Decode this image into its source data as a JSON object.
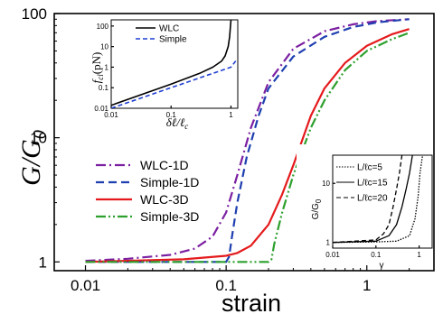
{
  "chart_data": [
    {
      "type": "line",
      "xlabel": "strain",
      "ylabel": "G/G0",
      "xscale": "log",
      "yscale": "log",
      "xlim": [
        0.006,
        3
      ],
      "ylim": [
        0.85,
        100
      ],
      "xticks": [
        0.01,
        0.1,
        1
      ],
      "xtick_labels": [
        "0.01",
        "0.1",
        "1"
      ],
      "yticks": [
        1,
        10,
        100
      ],
      "ytick_labels": [
        "1",
        "10",
        "100"
      ],
      "legend_position": "lower-left",
      "series": [
        {
          "name": "WLC-1D",
          "color": "#7b1fa2",
          "dash": "dashdot",
          "x": [
            0.01,
            0.02,
            0.04,
            0.06,
            0.08,
            0.1,
            0.12,
            0.15,
            0.2,
            0.3,
            0.5,
            0.8,
            1.2,
            2.0
          ],
          "y": [
            1.02,
            1.06,
            1.14,
            1.28,
            1.6,
            2.5,
            5,
            12,
            28,
            52,
            72,
            82,
            87,
            90
          ]
        },
        {
          "name": "Simple-1D",
          "color": "#1f3fb0",
          "dash": "dashed",
          "x": [
            0.01,
            0.05,
            0.1,
            0.105,
            0.11,
            0.12,
            0.14,
            0.17,
            0.2,
            0.3,
            0.5,
            0.8,
            1.2,
            2.0
          ],
          "y": [
            1.0,
            1.0,
            1.0,
            1.1,
            1.6,
            3.0,
            7,
            15,
            25,
            45,
            65,
            78,
            85,
            90
          ]
        },
        {
          "name": "WLC-3D",
          "color": "#e41a1c",
          "dash": "solid",
          "x": [
            0.01,
            0.05,
            0.1,
            0.12,
            0.15,
            0.2,
            0.25,
            0.3,
            0.4,
            0.5,
            0.7,
            1.0,
            1.5,
            2.0
          ],
          "y": [
            1.0,
            1.05,
            1.12,
            1.18,
            1.35,
            2.0,
            3.5,
            6,
            15,
            25,
            40,
            55,
            68,
            75
          ]
        },
        {
          "name": "Simple-3D",
          "color": "#2ca02c",
          "dash": "dashdotdot",
          "x": [
            0.01,
            0.1,
            0.2,
            0.21,
            0.22,
            0.25,
            0.3,
            0.35,
            0.4,
            0.5,
            0.7,
            1.0,
            1.5,
            2.0
          ],
          "y": [
            1.0,
            1.0,
            1.0,
            1.05,
            1.4,
            2.5,
            5,
            8,
            12,
            20,
            35,
            50,
            62,
            70
          ]
        }
      ]
    },
    {
      "type": "line",
      "title": "inset-top-left",
      "xlabel": "δℓ/ℓc",
      "ylabel": "fcl(pN)",
      "xscale": "log",
      "yscale": "log",
      "xlim": [
        0.01,
        1.3
      ],
      "ylim": [
        0.01,
        200
      ],
      "xtick_labels": [
        "0.01",
        "0.1",
        "1"
      ],
      "ytick_labels": [
        "0.01",
        "0.1",
        "1",
        "10",
        "100"
      ],
      "series": [
        {
          "name": "WLC",
          "color": "#000000",
          "dash": "solid",
          "x": [
            0.01,
            0.1,
            0.3,
            0.5,
            0.7,
            0.8,
            0.9,
            0.95,
            0.98,
            1.0
          ],
          "y": [
            0.014,
            0.15,
            0.5,
            1.0,
            2.0,
            3.5,
            10,
            30,
            100,
            200
          ]
        },
        {
          "name": "Simple",
          "color": "#1f3fd0",
          "dash": "dashed",
          "x": [
            0.01,
            0.1,
            0.3,
            0.5,
            0.7,
            0.9,
            1.0,
            1.2
          ],
          "y": [
            0.01,
            0.1,
            0.3,
            0.5,
            0.7,
            0.9,
            1.0,
            2.0
          ]
        }
      ]
    },
    {
      "type": "line",
      "title": "inset-bottom-right",
      "xlabel": "γ",
      "ylabel": "G/G0",
      "xscale": "log",
      "yscale": "log",
      "xlim": [
        0.01,
        2
      ],
      "ylim": [
        0.8,
        30
      ],
      "xtick_labels": [
        "0.01",
        "0.1",
        "1"
      ],
      "ytick_labels": [
        "1",
        "10"
      ],
      "series": [
        {
          "name": "L/ℓc=5",
          "color": "#000000",
          "dash": "dotted",
          "x": [
            0.01,
            0.1,
            0.3,
            0.6,
            0.8,
            0.95,
            1.05,
            1.2
          ],
          "y": [
            1.0,
            1.02,
            1.05,
            1.3,
            2.5,
            6,
            15,
            30
          ]
        },
        {
          "name": "L/ℓc=15",
          "color": "#000000",
          "dash": "solid",
          "x": [
            0.01,
            0.1,
            0.2,
            0.3,
            0.4,
            0.5,
            0.6,
            0.7
          ],
          "y": [
            1.0,
            1.05,
            1.3,
            2.0,
            4.0,
            8.0,
            15,
            30
          ]
        },
        {
          "name": "L/ℓc=20",
          "color": "#000000",
          "dash": "dashed",
          "x": [
            0.01,
            0.1,
            0.15,
            0.2,
            0.25,
            0.3,
            0.35,
            0.4
          ],
          "y": [
            1.0,
            1.1,
            1.4,
            2.0,
            4.0,
            8.0,
            15,
            30
          ]
        }
      ]
    }
  ],
  "labels": {
    "main_xlabel": "strain",
    "main_ylabel_main": "G/G",
    "main_ylabel_sub": "0",
    "inset1_ylabel_main": "f",
    "inset1_ylabel_sub": "cl",
    "inset1_ylabel_unit": "(pN)",
    "inset1_xlabel_main": "δℓ/ℓ",
    "inset1_xlabel_sub": "c",
    "inset2_xlabel": "γ",
    "inset2_ylabel_main": "G/G",
    "inset2_ylabel_sub": "0"
  }
}
